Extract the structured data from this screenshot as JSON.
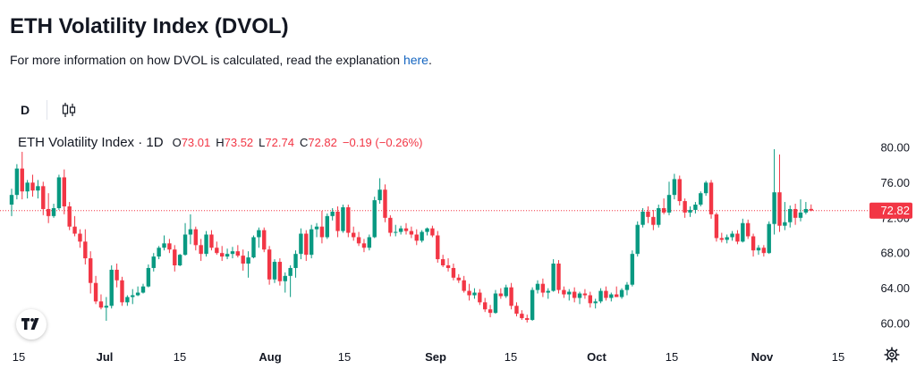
{
  "page": {
    "title": "ETH Volatility Index (DVOL)",
    "description": "For more information on how DVOL is calculated, read the explanation ",
    "link_text": "here",
    "link_suffix": "."
  },
  "toolbar": {
    "interval_label": "D",
    "chart_type_icon": "candlestick-icon"
  },
  "legend": {
    "symbol": "ETH Volatility Index · 1D",
    "open_label": "O",
    "open": "73.01",
    "high_label": "H",
    "high": "73.52",
    "low_label": "L",
    "low": "72.74",
    "close_label": "C",
    "close": "72.82",
    "change": "−0.19 (−0.26%)"
  },
  "price_tag": "72.82",
  "colors": {
    "up": "#089981",
    "down": "#f23645",
    "text": "#131722",
    "axis_text": "#131722",
    "link": "#1565c0"
  },
  "icons": {
    "logo": "tradingview-logo-icon",
    "settings": "gear-icon"
  },
  "chart_data": {
    "type": "candlestick",
    "title": "ETH Volatility Index · 1D",
    "ylim": [
      58,
      82
    ],
    "y_ticks": [
      "60.00",
      "64.00",
      "68.00",
      "72.00",
      "76.00",
      "80.00"
    ],
    "x_ticks": [
      "15",
      "Jul",
      "15",
      "Aug",
      "15",
      "Sep",
      "15",
      "Oct",
      "15",
      "Nov",
      "15"
    ],
    "series": [
      {
        "name": "",
        "candles": [
          [
            73.5,
            75.3,
            72.2,
            74.6
          ],
          [
            74.6,
            78.1,
            74.1,
            77.6
          ],
          [
            77.6,
            79.5,
            74.1,
            75.0
          ],
          [
            75.0,
            76.3,
            74.2,
            76.0
          ],
          [
            76.0,
            76.9,
            74.4,
            75.1
          ],
          [
            75.1,
            76.3,
            74.2,
            75.6
          ],
          [
            75.6,
            76.1,
            72.3,
            73.0
          ],
          [
            73.0,
            74.8,
            71.4,
            72.2
          ],
          [
            72.2,
            73.6,
            72.0,
            73.1
          ],
          [
            73.1,
            76.9,
            72.9,
            76.6
          ],
          [
            76.6,
            77.5,
            72.4,
            73.3
          ],
          [
            73.3,
            73.8,
            70.6,
            71.0
          ],
          [
            71.0,
            72.2,
            69.9,
            70.2
          ],
          [
            70.2,
            70.7,
            68.6,
            69.3
          ],
          [
            69.3,
            70.7,
            66.7,
            67.4
          ],
          [
            67.4,
            68.2,
            63.4,
            64.6
          ],
          [
            64.6,
            65.4,
            62.2,
            62.5
          ],
          [
            62.5,
            63.3,
            61.6,
            61.8
          ],
          [
            61.8,
            63.0,
            60.3,
            62.0
          ],
          [
            62.0,
            66.6,
            61.7,
            66.1
          ],
          [
            66.1,
            66.8,
            64.1,
            64.9
          ],
          [
            64.9,
            65.3,
            62.0,
            62.4
          ],
          [
            62.4,
            63.2,
            62.0,
            63.0
          ],
          [
            63.0,
            63.9,
            62.2,
            63.2
          ],
          [
            63.2,
            64.2,
            63.1,
            63.5
          ],
          [
            63.5,
            64.5,
            63.4,
            64.2
          ],
          [
            64.2,
            66.7,
            64.1,
            66.3
          ],
          [
            66.3,
            68.0,
            65.9,
            67.6
          ],
          [
            67.6,
            68.8,
            67.3,
            68.6
          ],
          [
            68.6,
            70.0,
            68.3,
            69.1
          ],
          [
            69.1,
            69.6,
            68.0,
            68.4
          ],
          [
            68.4,
            68.9,
            65.9,
            66.6
          ],
          [
            66.6,
            67.9,
            66.5,
            67.8
          ],
          [
            67.8,
            71.4,
            67.7,
            70.1
          ],
          [
            70.1,
            72.4,
            69.0,
            70.7
          ],
          [
            70.7,
            71.0,
            68.3,
            68.9
          ],
          [
            68.9,
            69.6,
            67.1,
            67.9
          ],
          [
            67.9,
            70.5,
            67.6,
            70.1
          ],
          [
            70.1,
            70.6,
            68.3,
            68.6
          ],
          [
            68.6,
            69.3,
            67.8,
            68.0
          ],
          [
            68.0,
            68.8,
            67.1,
            67.6
          ],
          [
            67.6,
            68.5,
            67.3,
            67.9
          ],
          [
            67.9,
            68.7,
            67.4,
            68.2
          ],
          [
            68.2,
            68.9,
            67.5,
            67.7
          ],
          [
            67.7,
            68.4,
            66.0,
            66.8
          ],
          [
            66.8,
            68.2,
            65.2,
            67.5
          ],
          [
            67.5,
            70.0,
            67.4,
            69.8
          ],
          [
            69.8,
            70.9,
            68.6,
            70.6
          ],
          [
            70.6,
            70.9,
            68.1,
            68.4
          ],
          [
            68.4,
            68.8,
            64.4,
            65.0
          ],
          [
            65.0,
            67.3,
            64.6,
            67.0
          ],
          [
            67.0,
            67.4,
            64.3,
            64.8
          ],
          [
            64.8,
            65.8,
            63.5,
            65.4
          ],
          [
            65.4,
            66.6,
            63.0,
            66.3
          ],
          [
            66.3,
            68.3,
            65.2,
            67.9
          ],
          [
            67.9,
            70.8,
            67.3,
            70.2
          ],
          [
            70.2,
            70.6,
            67.1,
            67.8
          ],
          [
            67.8,
            71.2,
            67.4,
            70.7
          ],
          [
            70.7,
            71.4,
            69.8,
            71.0
          ],
          [
            71.0,
            72.8,
            69.1,
            69.8
          ],
          [
            69.8,
            72.5,
            69.6,
            72.2
          ],
          [
            72.2,
            73.1,
            71.7,
            72.7
          ],
          [
            72.7,
            73.3,
            69.8,
            70.5
          ],
          [
            70.5,
            73.5,
            70.3,
            73.2
          ],
          [
            73.2,
            73.5,
            69.8,
            70.3
          ],
          [
            70.3,
            71.0,
            69.4,
            69.8
          ],
          [
            69.8,
            70.4,
            68.8,
            69.1
          ],
          [
            69.1,
            69.6,
            68.1,
            68.6
          ],
          [
            68.6,
            70.1,
            68.3,
            69.8
          ],
          [
            69.8,
            74.4,
            69.7,
            74.0
          ],
          [
            74.0,
            76.5,
            73.6,
            75.2
          ],
          [
            75.2,
            75.8,
            71.5,
            72.0
          ],
          [
            72.0,
            72.3,
            69.9,
            70.3
          ],
          [
            70.3,
            71.2,
            69.9,
            70.4
          ],
          [
            70.4,
            71.1,
            70.1,
            70.8
          ],
          [
            70.8,
            71.4,
            70.1,
            70.5
          ],
          [
            70.5,
            71.0,
            69.7,
            70.1
          ],
          [
            70.1,
            70.7,
            68.9,
            69.4
          ],
          [
            69.4,
            70.6,
            69.2,
            70.4
          ],
          [
            70.4,
            70.9,
            70.0,
            70.8
          ],
          [
            70.8,
            71.1,
            69.8,
            70.0
          ],
          [
            70.0,
            70.5,
            66.9,
            67.3
          ],
          [
            67.3,
            67.8,
            66.4,
            66.6
          ],
          [
            66.6,
            67.4,
            65.9,
            66.3
          ],
          [
            66.3,
            66.8,
            64.9,
            65.2
          ],
          [
            65.2,
            65.6,
            64.6,
            64.9
          ],
          [
            64.9,
            65.4,
            63.5,
            63.7
          ],
          [
            63.7,
            64.5,
            62.6,
            63.2
          ],
          [
            63.2,
            64.0,
            62.8,
            63.5
          ],
          [
            63.5,
            63.9,
            62.1,
            62.4
          ],
          [
            62.4,
            62.9,
            61.3,
            61.6
          ],
          [
            61.6,
            62.1,
            60.7,
            61.2
          ],
          [
            61.2,
            63.8,
            61.1,
            63.4
          ],
          [
            63.4,
            64.0,
            62.8,
            63.1
          ],
          [
            63.1,
            64.4,
            62.9,
            64.1
          ],
          [
            64.1,
            64.6,
            61.6,
            62.0
          ],
          [
            62.0,
            62.4,
            60.8,
            61.1
          ],
          [
            61.1,
            61.5,
            60.4,
            60.6
          ],
          [
            60.6,
            61.0,
            60.1,
            60.4
          ],
          [
            60.4,
            64.1,
            60.3,
            63.8
          ],
          [
            63.8,
            64.9,
            63.4,
            64.5
          ],
          [
            64.5,
            65.1,
            63.0,
            63.5
          ],
          [
            63.5,
            64.0,
            62.8,
            63.7
          ],
          [
            63.7,
            67.3,
            63.6,
            66.8
          ],
          [
            66.8,
            67.2,
            63.4,
            63.8
          ],
          [
            63.8,
            64.2,
            62.9,
            63.3
          ],
          [
            63.3,
            63.9,
            62.6,
            63.6
          ],
          [
            63.6,
            64.1,
            62.4,
            62.9
          ],
          [
            62.9,
            63.6,
            62.2,
            63.4
          ],
          [
            63.4,
            63.9,
            62.8,
            63.2
          ],
          [
            63.2,
            63.6,
            61.8,
            62.3
          ],
          [
            62.3,
            62.8,
            61.7,
            62.5
          ],
          [
            62.5,
            64.0,
            62.3,
            63.7
          ],
          [
            63.7,
            64.2,
            62.6,
            62.9
          ],
          [
            62.9,
            63.5,
            62.5,
            63.3
          ],
          [
            63.3,
            64.2,
            63.0,
            63.0
          ],
          [
            63.0,
            64.0,
            62.8,
            63.8
          ],
          [
            63.8,
            64.7,
            63.2,
            64.4
          ],
          [
            64.4,
            68.3,
            64.2,
            67.9
          ],
          [
            67.9,
            71.6,
            67.6,
            71.2
          ],
          [
            71.2,
            73.1,
            70.9,
            72.7
          ],
          [
            72.7,
            73.3,
            71.4,
            72.1
          ],
          [
            72.1,
            72.9,
            70.6,
            71.2
          ],
          [
            71.2,
            73.5,
            70.9,
            73.1
          ],
          [
            73.1,
            74.2,
            72.4,
            72.6
          ],
          [
            72.6,
            76.1,
            72.3,
            74.6
          ],
          [
            74.6,
            77.0,
            74.1,
            76.4
          ],
          [
            76.4,
            76.8,
            73.4,
            73.9
          ],
          [
            73.9,
            74.2,
            72.0,
            72.6
          ],
          [
            72.6,
            73.3,
            72.1,
            72.9
          ],
          [
            72.9,
            73.8,
            72.5,
            73.5
          ],
          [
            73.5,
            75.0,
            73.3,
            74.8
          ],
          [
            74.8,
            76.2,
            74.5,
            76.0
          ],
          [
            76.0,
            76.3,
            71.9,
            72.4
          ],
          [
            72.4,
            72.6,
            69.3,
            69.7
          ],
          [
            69.7,
            70.3,
            69.2,
            69.5
          ],
          [
            69.5,
            70.1,
            69.1,
            69.8
          ],
          [
            69.8,
            70.5,
            69.4,
            70.2
          ],
          [
            70.2,
            70.6,
            69.0,
            69.3
          ],
          [
            69.3,
            71.9,
            69.2,
            71.4
          ],
          [
            71.4,
            71.8,
            69.6,
            69.9
          ],
          [
            69.9,
            70.2,
            67.6,
            68.3
          ],
          [
            68.3,
            68.9,
            67.8,
            68.6
          ],
          [
            68.6,
            68.9,
            67.6,
            68.0
          ],
          [
            68.0,
            71.6,
            67.9,
            71.3
          ],
          [
            71.3,
            79.8,
            70.1,
            74.9
          ],
          [
            74.9,
            79.2,
            70.4,
            71.1
          ],
          [
            71.1,
            73.8,
            70.6,
            71.5
          ],
          [
            71.5,
            73.4,
            70.9,
            73.0
          ],
          [
            73.0,
            73.6,
            71.2,
            72.0
          ],
          [
            72.0,
            74.1,
            71.6,
            72.6
          ],
          [
            72.6,
            73.8,
            72.4,
            73.0
          ],
          [
            73.01,
            73.52,
            72.74,
            72.82
          ]
        ]
      }
    ]
  }
}
